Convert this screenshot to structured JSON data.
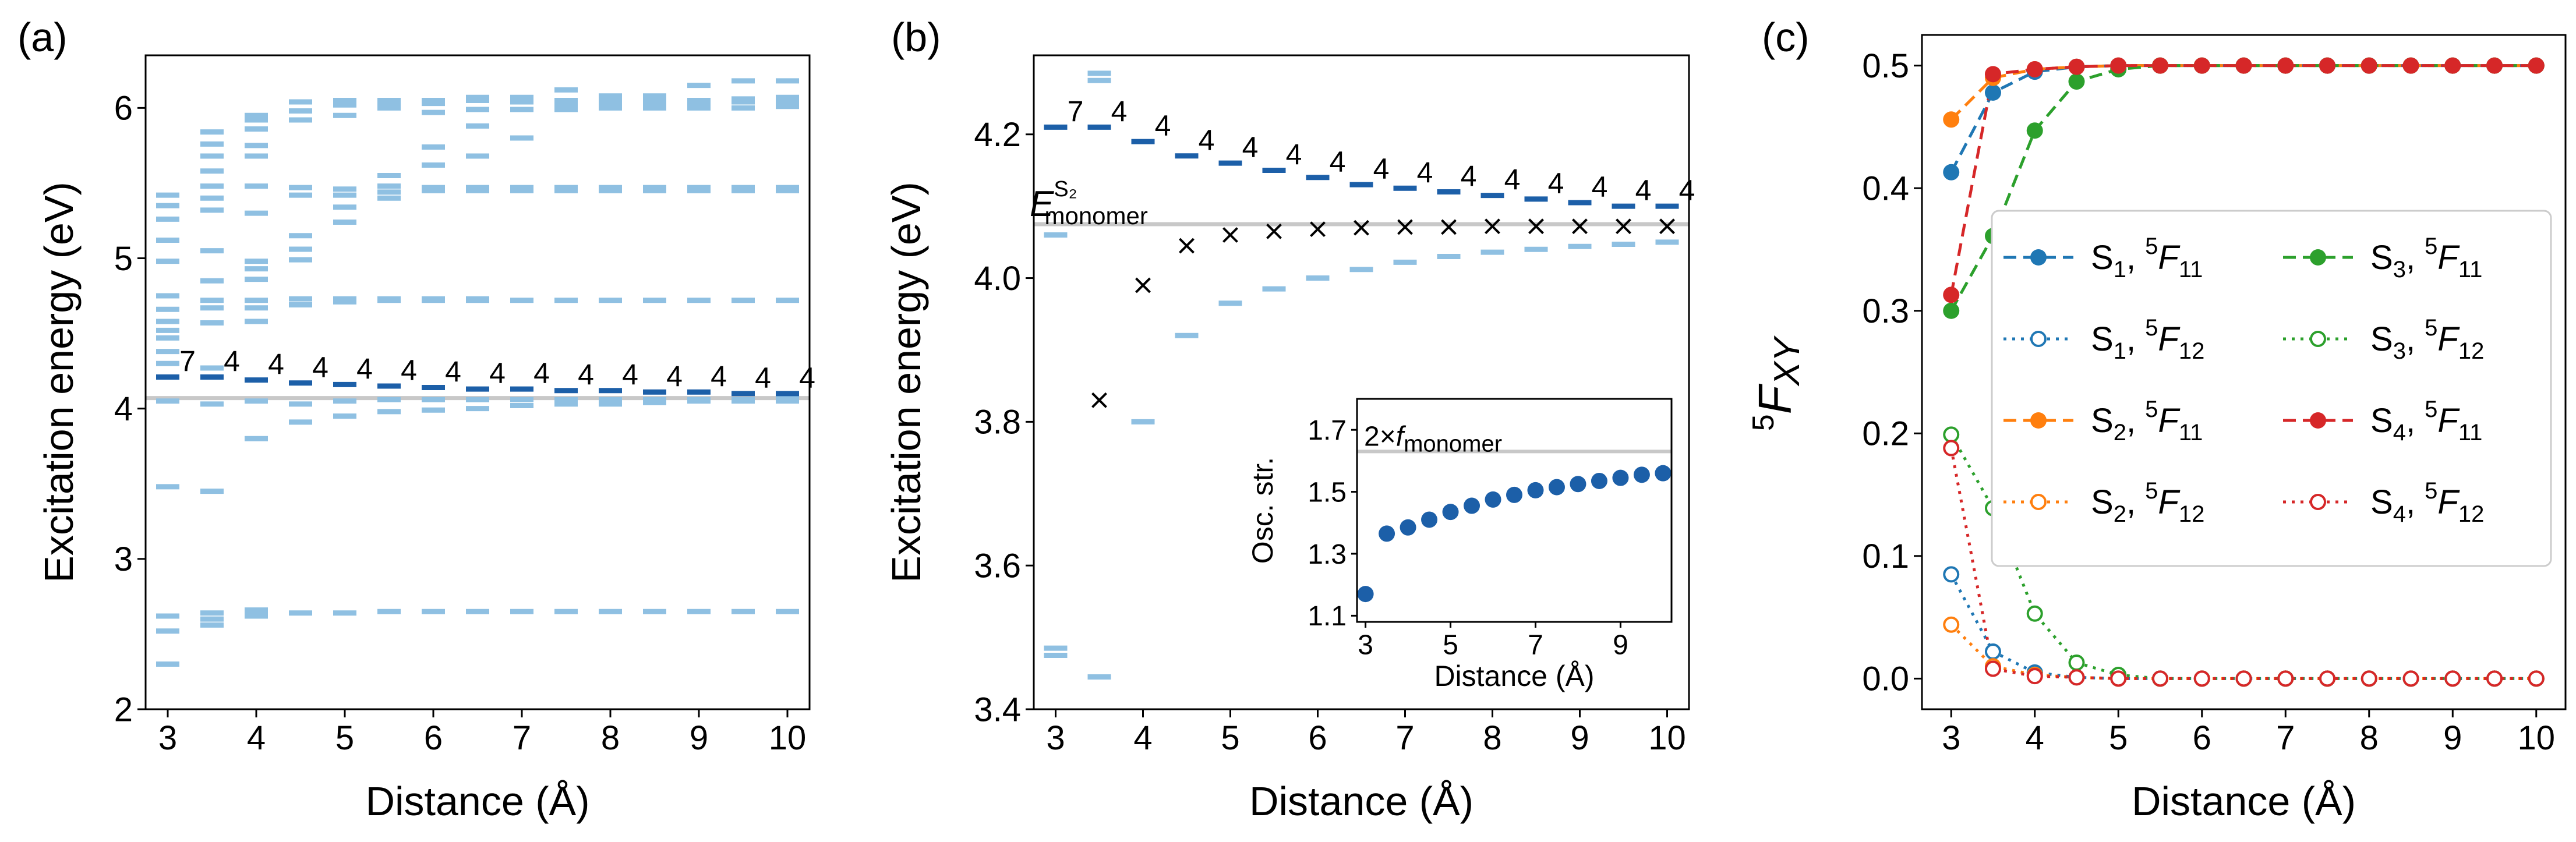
{
  "colors": {
    "dark_blue": "#1c5fa8",
    "light_blue": "#8fc0e2",
    "reference_gray": "#c8c8c8",
    "marker_black": "#000000",
    "tab_blue": "#1f77b4",
    "tab_orange": "#ff7f0e",
    "tab_green": "#2ca02c",
    "tab_red": "#d62728"
  },
  "chart_data": [
    {
      "id": "a",
      "panel_label": "(a)",
      "type": "scatter",
      "xlabel": "Distance (Å)",
      "ylabel": "Excitation energy (eV)",
      "xlim": [
        2.75,
        10.25
      ],
      "ylim": [
        2.0,
        6.35
      ],
      "x_ticks": [
        3,
        4,
        5,
        6,
        7,
        8,
        9,
        10
      ],
      "y_ticks": [
        2,
        3,
        4,
        5,
        6
      ],
      "x_tick_labels": [
        "3",
        "4",
        "5",
        "6",
        "7",
        "8",
        "9",
        "10"
      ],
      "y_tick_labels": [
        "2",
        "3",
        "4",
        "5",
        "6"
      ],
      "reference_line": {
        "y": 4.07
      },
      "x": [
        3.0,
        3.5,
        4.0,
        4.5,
        5.0,
        5.5,
        6.0,
        6.5,
        7.0,
        7.5,
        8.0,
        8.5,
        9.0,
        9.5,
        10.0
      ],
      "series": [
        {
          "role": "highlighted level",
          "style": "dark_blue",
          "values": [
            4.21,
            4.21,
            4.19,
            4.17,
            4.16,
            4.15,
            4.14,
            4.13,
            4.13,
            4.12,
            4.12,
            4.11,
            4.11,
            4.1,
            4.1
          ],
          "annotations": [
            "7",
            "4",
            "4",
            "4",
            "4",
            "4",
            "4",
            "4",
            "4",
            "4",
            "4",
            "4",
            "4",
            "4",
            "4"
          ]
        },
        {
          "role": "other levels",
          "style": "light_blue",
          "levels": [
            [
              2.3,
              2.52,
              2.62,
              3.48,
              4.05,
              4.3,
              4.38,
              4.47,
              4.52,
              4.58,
              4.66,
              4.75,
              4.98,
              5.12,
              5.26,
              5.35,
              5.42
            ],
            [
              2.56,
              2.6,
              2.64,
              3.45,
              4.03,
              4.27,
              4.57,
              4.67,
              4.72,
              4.85,
              5.05,
              5.32,
              5.4,
              5.48,
              5.58,
              5.68,
              5.76,
              5.84
            ],
            [
              2.62,
              2.64,
              2.66,
              3.8,
              4.05,
              4.58,
              4.67,
              4.72,
              4.86,
              4.93,
              4.98,
              5.3,
              5.48,
              5.68,
              5.75,
              5.86,
              5.92,
              5.95
            ],
            [
              2.64,
              3.91,
              4.03,
              4.69,
              4.73,
              4.99,
              5.06,
              5.15,
              5.42,
              5.47,
              5.92,
              5.98,
              6.04
            ],
            [
              2.64,
              3.95,
              4.05,
              4.71,
              4.73,
              5.24,
              5.34,
              5.42,
              5.46,
              5.95,
              6.02,
              6.05
            ],
            [
              2.65,
              3.98,
              4.06,
              4.72,
              4.73,
              5.4,
              5.44,
              5.48,
              5.55,
              6.0,
              6.03,
              6.05
            ],
            [
              2.65,
              3.99,
              4.06,
              4.72,
              4.73,
              5.45,
              5.47,
              5.62,
              5.74,
              5.97,
              6.03,
              6.05
            ],
            [
              2.65,
              4.0,
              4.06,
              4.72,
              4.73,
              5.45,
              5.47,
              5.68,
              5.88,
              5.99,
              6.05,
              6.07
            ],
            [
              2.65,
              4.02,
              4.06,
              4.72,
              5.45,
              5.47,
              5.8,
              5.99,
              6.04,
              6.07
            ],
            [
              2.65,
              4.03,
              4.06,
              4.72,
              5.45,
              5.47,
              5.99,
              6.02,
              6.05,
              6.12
            ],
            [
              2.65,
              4.03,
              4.06,
              4.72,
              5.45,
              5.47,
              6.0,
              6.03,
              6.05,
              6.08
            ],
            [
              2.65,
              4.04,
              4.06,
              4.72,
              5.45,
              5.47,
              6.0,
              6.03,
              6.05,
              6.08
            ],
            [
              2.65,
              4.05,
              4.06,
              4.72,
              5.45,
              5.47,
              6.0,
              6.03,
              6.05,
              6.15
            ],
            [
              2.65,
              4.05,
              4.06,
              4.72,
              5.45,
              5.47,
              6.0,
              6.04,
              6.06,
              6.18
            ],
            [
              2.65,
              4.05,
              4.07,
              4.72,
              5.45,
              5.47,
              6.01,
              6.04,
              6.07,
              6.18
            ]
          ]
        }
      ]
    },
    {
      "id": "b",
      "panel_label": "(b)",
      "type": "scatter",
      "xlabel": "Distance (Å)",
      "ylabel": "Excitation energy (eV)",
      "xlim": [
        2.75,
        10.25
      ],
      "ylim": [
        3.4,
        4.31
      ],
      "x_ticks": [
        3,
        4,
        5,
        6,
        7,
        8,
        9,
        10
      ],
      "y_ticks": [
        3.4,
        3.6,
        3.8,
        4.0,
        4.2
      ],
      "x_tick_labels": [
        "3",
        "4",
        "5",
        "6",
        "7",
        "8",
        "9",
        "10"
      ],
      "y_tick_labels": [
        "3.4",
        "3.6",
        "3.8",
        "4.0",
        "4.2"
      ],
      "reference_line": {
        "y": 4.075,
        "label_main": "E",
        "label_sup": "S₂",
        "label_sub": "monomer"
      },
      "x": [
        3.0,
        3.5,
        4.0,
        4.5,
        5.0,
        5.5,
        6.0,
        6.5,
        7.0,
        7.5,
        8.0,
        8.5,
        9.0,
        9.5,
        10.0
      ],
      "series": [
        {
          "role": "highlighted level",
          "style": "dark_blue",
          "values": [
            4.21,
            4.21,
            4.19,
            4.17,
            4.16,
            4.15,
            4.14,
            4.13,
            4.125,
            4.12,
            4.115,
            4.11,
            4.105,
            4.1,
            4.1
          ],
          "annotations": [
            "7",
            "4",
            "4",
            "4",
            "4",
            "4",
            "4",
            "4",
            "4",
            "4",
            "4",
            "4",
            "4",
            "4",
            "4"
          ]
        },
        {
          "role": "cross markers",
          "style": "marker_black",
          "values": [
            null,
            3.83,
            3.99,
            4.045,
            4.06,
            4.065,
            4.068,
            4.07,
            4.071,
            4.071,
            4.072,
            4.072,
            4.072,
            4.072,
            4.072
          ]
        },
        {
          "role": "other levels",
          "style": "light_blue",
          "levels": [
            [
              3.475,
              3.485,
              4.06
            ],
            [
              3.445,
              4.275,
              4.285
            ],
            [
              3.8
            ],
            [
              3.92
            ],
            [
              3.965
            ],
            [
              3.985
            ],
            [
              4.0
            ],
            [
              4.012
            ],
            [
              4.022
            ],
            [
              4.03
            ],
            [
              4.036
            ],
            [
              4.04
            ],
            [
              4.044
            ],
            [
              4.047
            ],
            [
              4.05
            ]
          ]
        }
      ]
    },
    {
      "id": "b-inset",
      "type": "scatter",
      "xlabel": "Distance (Å)",
      "ylabel": "Osc. str.",
      "xlim": [
        2.8,
        10.2
      ],
      "ylim": [
        1.08,
        1.8
      ],
      "x_ticks": [
        3,
        5,
        7,
        9
      ],
      "y_ticks": [
        1.1,
        1.3,
        1.5,
        1.7
      ],
      "x_tick_labels": [
        "3",
        "5",
        "7",
        "9"
      ],
      "y_tick_labels": [
        "1.1",
        "1.3",
        "1.5",
        "1.7"
      ],
      "reference_line": {
        "y": 1.63,
        "label_prefix": "2×",
        "label_main": "f",
        "label_sub": "monomer"
      },
      "x": [
        3.0,
        3.5,
        4.0,
        4.5,
        5.0,
        5.5,
        6.0,
        6.5,
        7.0,
        7.5,
        8.0,
        8.5,
        9.0,
        9.5,
        10.0
      ],
      "series": [
        {
          "style": "dark_blue",
          "values": [
            1.17,
            1.365,
            1.385,
            1.41,
            1.435,
            1.455,
            1.475,
            1.49,
            1.505,
            1.515,
            1.525,
            1.535,
            1.545,
            1.555,
            1.56
          ]
        }
      ]
    },
    {
      "id": "c",
      "panel_label": "(c)",
      "type": "line",
      "xlabel": "Distance (Å)",
      "ylabel": "F",
      "ylabel_pre": "5",
      "ylabel_sub": "XY",
      "xlim": [
        2.65,
        10.35
      ],
      "ylim": [
        -0.025,
        0.525
      ],
      "x_ticks": [
        3,
        4,
        5,
        6,
        7,
        8,
        9,
        10
      ],
      "y_ticks": [
        0.0,
        0.1,
        0.2,
        0.3,
        0.4,
        0.5
      ],
      "x_tick_labels": [
        "3",
        "4",
        "5",
        "6",
        "7",
        "8",
        "9",
        "10"
      ],
      "y_tick_labels": [
        "0.0",
        "0.1",
        "0.2",
        "0.3",
        "0.4",
        "0.5"
      ],
      "legend": "center-right",
      "x": [
        3.0,
        3.5,
        4.0,
        4.5,
        5.0,
        5.5,
        6.0,
        6.5,
        7.0,
        7.5,
        8.0,
        8.5,
        9.0,
        9.5,
        10.0
      ],
      "series": [
        {
          "state": "S",
          "state_sub": "1",
          "term_sub": "11",
          "style": "tab_blue",
          "dash": "dashed",
          "filled": true,
          "values": [
            0.413,
            0.478,
            0.495,
            0.499,
            0.5,
            0.5,
            0.5,
            0.5,
            0.5,
            0.5,
            0.5,
            0.5,
            0.5,
            0.5,
            0.5
          ]
        },
        {
          "state": "S",
          "state_sub": "1",
          "term_sub": "12",
          "style": "tab_blue",
          "dash": "dotted",
          "filled": false,
          "values": [
            0.085,
            0.022,
            0.005,
            0.001,
            0.0,
            0.0,
            0.0,
            0.0,
            0.0,
            0.0,
            0.0,
            0.0,
            0.0,
            0.0,
            0.0
          ]
        },
        {
          "state": "S",
          "state_sub": "2",
          "term_sub": "11",
          "style": "tab_orange",
          "dash": "dashed",
          "filled": true,
          "values": [
            0.456,
            0.49,
            0.497,
            0.499,
            0.5,
            0.5,
            0.5,
            0.5,
            0.5,
            0.5,
            0.5,
            0.5,
            0.5,
            0.5,
            0.5
          ]
        },
        {
          "state": "S",
          "state_sub": "2",
          "term_sub": "12",
          "style": "tab_orange",
          "dash": "dotted",
          "filled": false,
          "values": [
            0.044,
            0.01,
            0.003,
            0.001,
            0.0,
            0.0,
            0.0,
            0.0,
            0.0,
            0.0,
            0.0,
            0.0,
            0.0,
            0.0,
            0.0
          ]
        },
        {
          "state": "S",
          "state_sub": "3",
          "term_sub": "11",
          "style": "tab_green",
          "dash": "dashed",
          "filled": true,
          "values": [
            0.3,
            0.361,
            0.447,
            0.487,
            0.497,
            0.5,
            0.5,
            0.5,
            0.5,
            0.5,
            0.5,
            0.5,
            0.5,
            0.5,
            0.5
          ]
        },
        {
          "state": "S",
          "state_sub": "3",
          "term_sub": "12",
          "style": "tab_green",
          "dash": "dotted",
          "filled": false,
          "values": [
            0.199,
            0.139,
            0.053,
            0.013,
            0.003,
            0.0,
            0.0,
            0.0,
            0.0,
            0.0,
            0.0,
            0.0,
            0.0,
            0.0,
            0.0
          ]
        },
        {
          "state": "S",
          "state_sub": "4",
          "term_sub": "11",
          "style": "tab_red",
          "dash": "dashed",
          "filled": true,
          "values": [
            0.313,
            0.493,
            0.497,
            0.499,
            0.5,
            0.5,
            0.5,
            0.5,
            0.5,
            0.5,
            0.5,
            0.5,
            0.5,
            0.5,
            0.5
          ]
        },
        {
          "state": "S",
          "state_sub": "4",
          "term_sub": "12",
          "style": "tab_red",
          "dash": "dotted",
          "filled": false,
          "values": [
            0.188,
            0.008,
            0.002,
            0.001,
            0.0,
            0.0,
            0.0,
            0.0,
            0.0,
            0.0,
            0.0,
            0.0,
            0.0,
            0.0,
            0.0
          ]
        }
      ]
    }
  ]
}
